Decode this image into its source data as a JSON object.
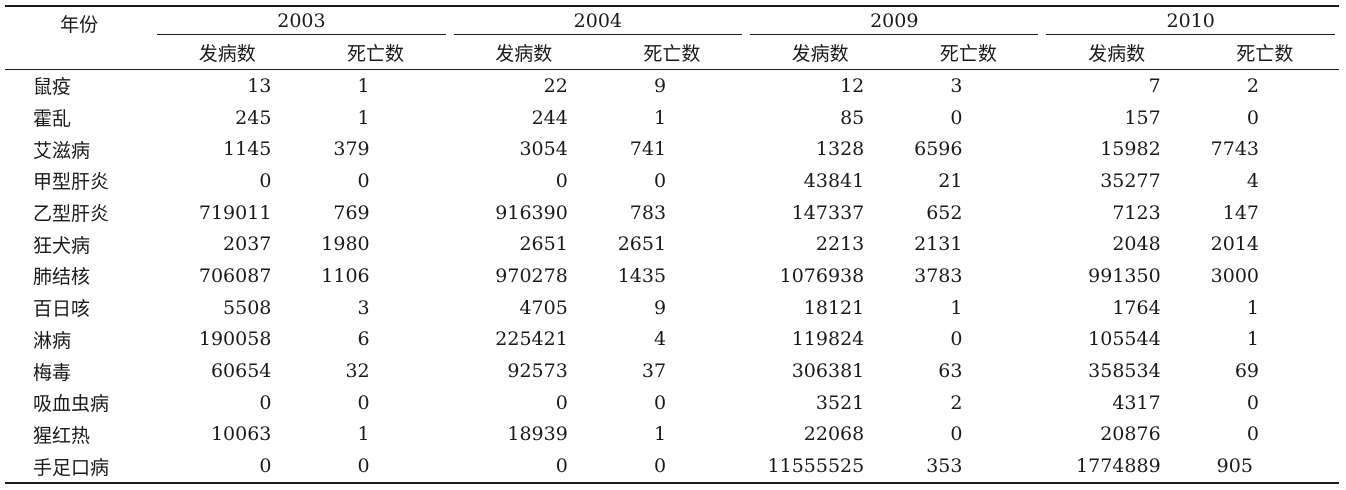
{
  "table": {
    "corner_label": "年份",
    "years": [
      "2003",
      "2004",
      "2009",
      "2010"
    ],
    "sub_headers": [
      "发病数",
      "死亡数"
    ],
    "rows": [
      {
        "name": "鼠疫",
        "values": [
          "13",
          "1",
          "22",
          "9",
          "12",
          "3",
          "7",
          "2"
        ]
      },
      {
        "name": "霍乱",
        "values": [
          "245",
          "1",
          "244",
          "1",
          "85",
          "0",
          "157",
          "0"
        ]
      },
      {
        "name": "艾滋病",
        "values": [
          "1145",
          "379",
          "3054",
          "741",
          "1328",
          "6596",
          "15982",
          "7743"
        ]
      },
      {
        "name": "甲型肝炎",
        "values": [
          "0",
          "0",
          "0",
          "0",
          "43841",
          "21",
          "35277",
          "4"
        ]
      },
      {
        "name": "乙型肝炎",
        "values": [
          "719011",
          "769",
          "916390",
          "783",
          "147337",
          "652",
          "7123",
          "147"
        ]
      },
      {
        "name": "狂犬病",
        "values": [
          "2037",
          "1980",
          "2651",
          "2651",
          "2213",
          "2131",
          "2048",
          "2014"
        ]
      },
      {
        "name": "肺结核",
        "values": [
          "706087",
          "1106",
          "970278",
          "1435",
          "1076938",
          "3783",
          "991350",
          "3000"
        ]
      },
      {
        "name": "百日咳",
        "values": [
          "5508",
          "3",
          "4705",
          "9",
          "18121",
          "1",
          "1764",
          "1"
        ]
      },
      {
        "name": "淋病",
        "values": [
          "190058",
          "6",
          "225421",
          "4",
          "119824",
          "0",
          "105544",
          "1"
        ]
      },
      {
        "name": "梅毒",
        "values": [
          "60654",
          "32",
          "92573",
          "37",
          "306381",
          "63",
          "358534",
          "69"
        ]
      },
      {
        "name": "吸血虫病",
        "values": [
          "0",
          "0",
          "0",
          "0",
          "3521",
          "2",
          "4317",
          "0"
        ]
      },
      {
        "name": "猩红热",
        "values": [
          "10063",
          "1",
          "18939",
          "1",
          "22068",
          "0",
          "20876",
          "0"
        ]
      },
      {
        "name": "手足口病",
        "values": [
          "0",
          "0",
          "0",
          "0",
          "11555525",
          "353",
          "1774889",
          "905"
        ]
      }
    ]
  }
}
